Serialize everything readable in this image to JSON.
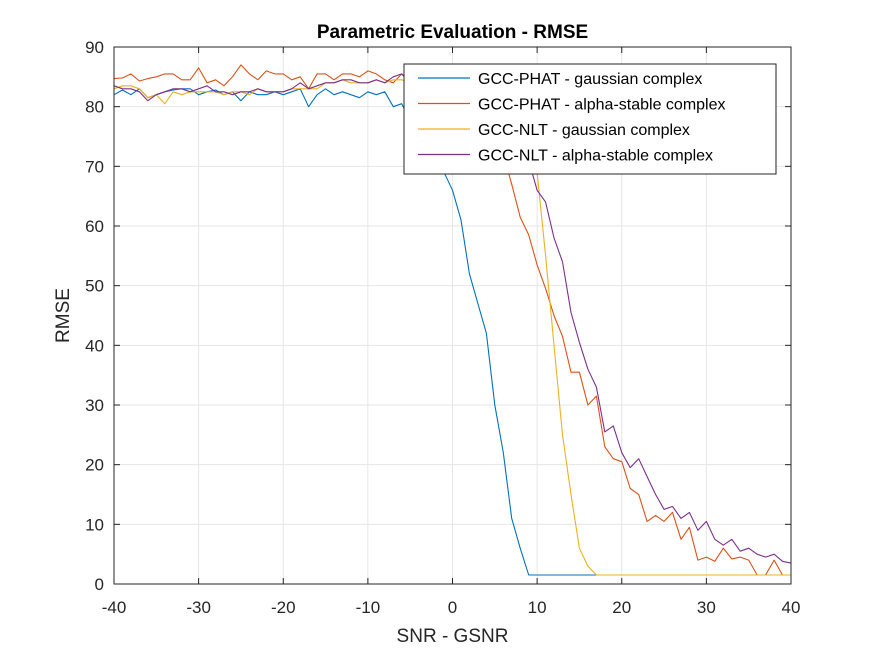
{
  "chart_data": {
    "type": "line",
    "title": "Parametric Evaluation - RMSE",
    "xlabel": "SNR - GSNR",
    "ylabel": "RMSE",
    "xlim": [
      -40,
      40
    ],
    "ylim": [
      0,
      90
    ],
    "xticks": [
      -40,
      -30,
      -20,
      -10,
      0,
      10,
      20,
      30,
      40
    ],
    "yticks": [
      0,
      10,
      20,
      30,
      40,
      50,
      60,
      70,
      80,
      90
    ],
    "grid": true,
    "legend_position": "top-right",
    "series": [
      {
        "name": "GCC-PHAT - gaussian complex",
        "color": "#0072BD",
        "points": [
          [
            -40,
            82
          ],
          [
            -39,
            82.8
          ],
          [
            -38,
            82
          ],
          [
            -37,
            83
          ],
          [
            -36,
            81.5
          ],
          [
            -35,
            82
          ],
          [
            -34,
            82.5
          ],
          [
            -33,
            82.8
          ],
          [
            -32,
            83
          ],
          [
            -31,
            83
          ],
          [
            -30,
            82
          ],
          [
            -29,
            82.5
          ],
          [
            -28,
            82.8
          ],
          [
            -27,
            82
          ],
          [
            -26,
            82.5
          ],
          [
            -25,
            81
          ],
          [
            -24,
            82.5
          ],
          [
            -23,
            82
          ],
          [
            -22,
            82
          ],
          [
            -21,
            82.5
          ],
          [
            -20,
            82
          ],
          [
            -19,
            82.5
          ],
          [
            -18,
            83
          ],
          [
            -17,
            80
          ],
          [
            -16,
            82
          ],
          [
            -15,
            83
          ],
          [
            -14,
            82
          ],
          [
            -13,
            82.5
          ],
          [
            -12,
            82
          ],
          [
            -11,
            81.5
          ],
          [
            -10,
            82.5
          ],
          [
            -9,
            82
          ],
          [
            -8,
            82.5
          ],
          [
            -7,
            80
          ],
          [
            -6,
            80.5
          ],
          [
            -5,
            77.5
          ],
          [
            -4,
            77
          ],
          [
            -3,
            74.5
          ],
          [
            -2,
            72.5
          ],
          [
            -1,
            69
          ],
          [
            0,
            66
          ],
          [
            1,
            61
          ],
          [
            2,
            52
          ],
          [
            3,
            47
          ],
          [
            4,
            42
          ],
          [
            5,
            30
          ],
          [
            6,
            22
          ],
          [
            7,
            11
          ],
          [
            8,
            6
          ],
          [
            9,
            1.5
          ],
          [
            10,
            1.5
          ],
          [
            11,
            1.5
          ],
          [
            12,
            1.5
          ],
          [
            13,
            1.5
          ],
          [
            14,
            1.5
          ],
          [
            15,
            1.5
          ],
          [
            16,
            1.5
          ],
          [
            17,
            1.5
          ]
        ]
      },
      {
        "name": "GCC-PHAT - alpha-stable complex",
        "color": "#D95319",
        "points": [
          [
            -40,
            84.7
          ],
          [
            -39,
            84.8
          ],
          [
            -38,
            85.5
          ],
          [
            -37,
            84.3
          ],
          [
            -36,
            84.7
          ],
          [
            -35,
            85
          ],
          [
            -34,
            85.5
          ],
          [
            -33,
            85.5
          ],
          [
            -32,
            84.5
          ],
          [
            -31,
            84.5
          ],
          [
            -30,
            86.5
          ],
          [
            -29,
            84
          ],
          [
            -28,
            84.5
          ],
          [
            -27,
            83.5
          ],
          [
            -26,
            85
          ],
          [
            -25,
            87
          ],
          [
            -24,
            85.5
          ],
          [
            -23,
            84.5
          ],
          [
            -22,
            86
          ],
          [
            -21,
            85.5
          ],
          [
            -20,
            85.5
          ],
          [
            -19,
            84.5
          ],
          [
            -18,
            85
          ],
          [
            -17,
            83
          ],
          [
            -16,
            85.5
          ],
          [
            -15,
            85.5
          ],
          [
            -14,
            84.5
          ],
          [
            -13,
            85.5
          ],
          [
            -12,
            85.5
          ],
          [
            -11,
            85
          ],
          [
            -10,
            86
          ],
          [
            -9,
            85.5
          ],
          [
            -8,
            84.5
          ],
          [
            -7,
            84
          ],
          [
            -6,
            85.5
          ],
          [
            -5,
            84
          ],
          [
            -4,
            84
          ],
          [
            -3,
            84.5
          ],
          [
            -2,
            84
          ],
          [
            -1,
            83
          ],
          [
            0,
            83.5
          ],
          [
            1,
            84
          ],
          [
            2,
            83.5
          ],
          [
            3,
            81.5
          ],
          [
            4,
            79
          ],
          [
            5,
            76
          ],
          [
            6,
            72
          ],
          [
            7,
            67
          ],
          [
            8,
            61.5
          ],
          [
            9,
            58.5
          ],
          [
            10,
            53.5
          ],
          [
            11,
            49.5
          ],
          [
            12,
            45
          ],
          [
            13,
            41.5
          ],
          [
            14,
            35.5
          ],
          [
            15,
            35.5
          ],
          [
            16,
            30
          ],
          [
            17,
            31.5
          ],
          [
            18,
            23
          ],
          [
            19,
            21
          ],
          [
            20,
            20.5
          ],
          [
            21,
            16
          ],
          [
            22,
            15
          ],
          [
            23,
            10.5
          ],
          [
            24,
            11.5
          ],
          [
            25,
            10.5
          ],
          [
            26,
            12
          ],
          [
            27,
            7.5
          ],
          [
            28,
            9.5
          ],
          [
            29,
            4
          ],
          [
            30,
            4.5
          ],
          [
            31,
            3.8
          ],
          [
            32,
            6
          ],
          [
            33,
            4.2
          ],
          [
            34,
            4.5
          ],
          [
            35,
            4
          ],
          [
            36,
            1.5
          ],
          [
            37,
            1.5
          ],
          [
            38,
            4
          ],
          [
            39,
            1.5
          ],
          [
            40,
            1.5
          ]
        ]
      },
      {
        "name": "GCC-NLT - gaussian complex",
        "color": "#EDB120",
        "points": [
          [
            -40,
            83
          ],
          [
            -39,
            83.5
          ],
          [
            -38,
            83.5
          ],
          [
            -37,
            83
          ],
          [
            -36,
            81.5
          ],
          [
            -35,
            82
          ],
          [
            -34,
            80.5
          ],
          [
            -33,
            82.5
          ],
          [
            -32,
            82
          ],
          [
            -31,
            82.5
          ],
          [
            -30,
            82.5
          ],
          [
            -29,
            82.5
          ],
          [
            -28,
            82.5
          ],
          [
            -27,
            82
          ],
          [
            -26,
            82.5
          ],
          [
            -25,
            82.5
          ],
          [
            -24,
            82
          ],
          [
            -23,
            83
          ],
          [
            -22,
            82.5
          ],
          [
            -21,
            82.5
          ],
          [
            -20,
            82.5
          ],
          [
            -19,
            83
          ],
          [
            -18,
            83
          ],
          [
            -17,
            83
          ],
          [
            -16,
            83
          ],
          [
            -15,
            84
          ],
          [
            -14,
            84
          ],
          [
            -13,
            84.5
          ],
          [
            -12,
            84
          ],
          [
            -11,
            84
          ],
          [
            -10,
            84
          ],
          [
            -9,
            84.5
          ],
          [
            -8,
            84
          ],
          [
            -7,
            84.5
          ],
          [
            -6,
            84.5
          ],
          [
            -5,
            84
          ],
          [
            -4,
            84
          ],
          [
            -3,
            84
          ],
          [
            -2,
            84.5
          ],
          [
            -1,
            84
          ],
          [
            0,
            84
          ],
          [
            1,
            83.5
          ],
          [
            2,
            84
          ],
          [
            3,
            83.5
          ],
          [
            4,
            83.5
          ],
          [
            5,
            83.5
          ],
          [
            6,
            83.5
          ],
          [
            7,
            82.5
          ],
          [
            8,
            79
          ],
          [
            9,
            73
          ],
          [
            10,
            69
          ],
          [
            11,
            55
          ],
          [
            12,
            40
          ],
          [
            13,
            25
          ],
          [
            14,
            15
          ],
          [
            15,
            6
          ],
          [
            16,
            3
          ],
          [
            17,
            1.5
          ],
          [
            18,
            1.5
          ],
          [
            19,
            1.5
          ],
          [
            20,
            1.5
          ],
          [
            21,
            1.5
          ],
          [
            22,
            1.5
          ],
          [
            23,
            1.5
          ],
          [
            24,
            1.5
          ],
          [
            25,
            1.5
          ],
          [
            26,
            1.5
          ],
          [
            27,
            1.5
          ],
          [
            28,
            1.5
          ],
          [
            29,
            1.5
          ],
          [
            30,
            1.5
          ],
          [
            31,
            1.5
          ],
          [
            32,
            1.5
          ],
          [
            33,
            1.5
          ],
          [
            34,
            1.5
          ],
          [
            35,
            1.5
          ],
          [
            36,
            1.5
          ],
          [
            37,
            1.5
          ],
          [
            38,
            1.5
          ],
          [
            39,
            1.5
          ],
          [
            40,
            1.5
          ]
        ]
      },
      {
        "name": "GCC-NLT - alpha-stable complex",
        "color": "#7E2F8E",
        "points": [
          [
            -40,
            83.5
          ],
          [
            -39,
            83
          ],
          [
            -38,
            83
          ],
          [
            -37,
            82.5
          ],
          [
            -36,
            81
          ],
          [
            -35,
            82
          ],
          [
            -34,
            82.5
          ],
          [
            -33,
            83
          ],
          [
            -32,
            83
          ],
          [
            -31,
            82.5
          ],
          [
            -30,
            83
          ],
          [
            -29,
            83.5
          ],
          [
            -28,
            82.5
          ],
          [
            -27,
            82.5
          ],
          [
            -26,
            82
          ],
          [
            -25,
            82.5
          ],
          [
            -24,
            82.5
          ],
          [
            -23,
            83
          ],
          [
            -22,
            82.5
          ],
          [
            -21,
            82.5
          ],
          [
            -20,
            82.5
          ],
          [
            -19,
            83
          ],
          [
            -18,
            84
          ],
          [
            -17,
            83
          ],
          [
            -16,
            83.5
          ],
          [
            -15,
            84
          ],
          [
            -14,
            84
          ],
          [
            -13,
            84.5
          ],
          [
            -12,
            84.5
          ],
          [
            -11,
            84
          ],
          [
            -10,
            84
          ],
          [
            -9,
            84.5
          ],
          [
            -8,
            84
          ],
          [
            -7,
            85
          ],
          [
            -6,
            85.5
          ],
          [
            -5,
            84
          ],
          [
            -4,
            84
          ],
          [
            -3,
            84
          ],
          [
            -2,
            84.5
          ],
          [
            -1,
            84
          ],
          [
            0,
            84
          ],
          [
            1,
            83.5
          ],
          [
            2,
            84
          ],
          [
            3,
            84
          ],
          [
            4,
            83.5
          ],
          [
            5,
            83.5
          ],
          [
            6,
            83.5
          ],
          [
            7,
            81
          ],
          [
            8,
            76
          ],
          [
            9,
            71
          ],
          [
            10,
            66
          ],
          [
            11,
            64
          ],
          [
            12,
            58
          ],
          [
            13,
            54
          ],
          [
            14,
            45.5
          ],
          [
            15,
            40.5
          ],
          [
            16,
            36
          ],
          [
            17,
            33
          ],
          [
            18,
            25.5
          ],
          [
            19,
            26.5
          ],
          [
            20,
            22
          ],
          [
            21,
            19.5
          ],
          [
            22,
            21
          ],
          [
            23,
            18
          ],
          [
            24,
            15
          ],
          [
            25,
            12.5
          ],
          [
            26,
            13
          ],
          [
            27,
            11
          ],
          [
            28,
            12
          ],
          [
            29,
            9
          ],
          [
            30,
            10.5
          ],
          [
            31,
            7.5
          ],
          [
            32,
            6.5
          ],
          [
            33,
            7.5
          ],
          [
            34,
            5.5
          ],
          [
            35,
            6
          ],
          [
            36,
            5
          ],
          [
            37,
            4.5
          ],
          [
            38,
            5
          ],
          [
            39,
            3.8
          ],
          [
            40,
            3.5
          ]
        ]
      }
    ]
  }
}
